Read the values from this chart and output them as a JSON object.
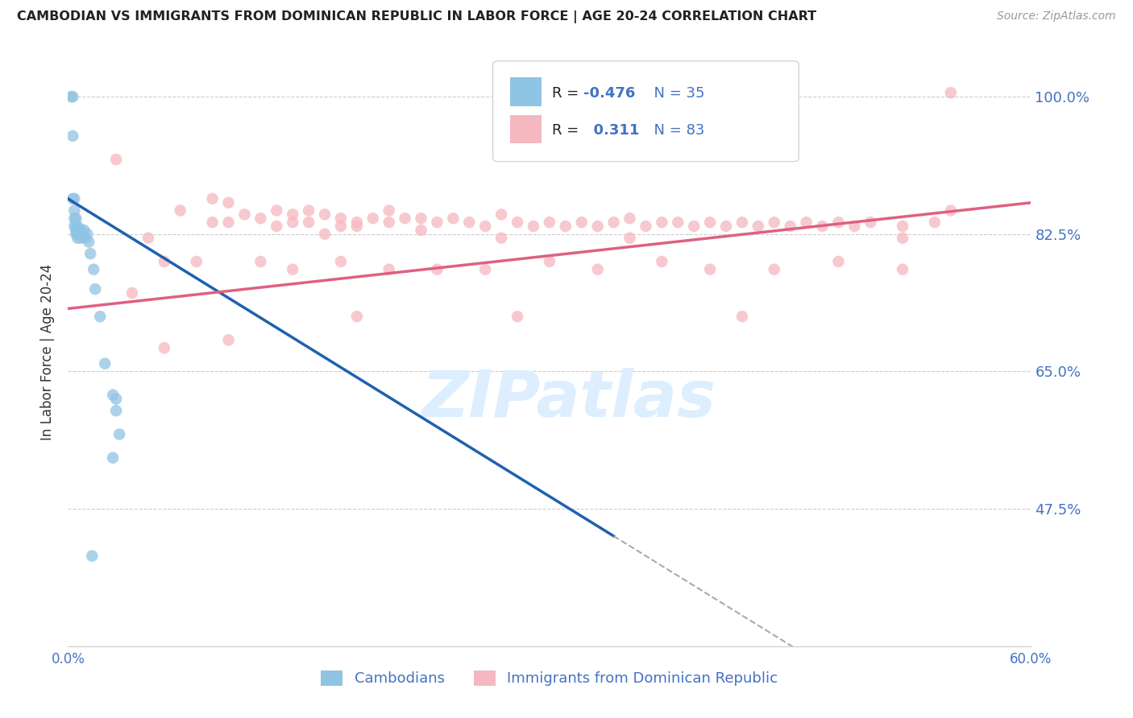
{
  "title": "CAMBODIAN VS IMMIGRANTS FROM DOMINICAN REPUBLIC IN LABOR FORCE | AGE 20-24 CORRELATION CHART",
  "source": "Source: ZipAtlas.com",
  "ylabel": "In Labor Force | Age 20-24",
  "x_min": 0.0,
  "x_max": 0.6,
  "y_min": 0.3,
  "y_max": 1.05,
  "yticks": [
    0.475,
    0.65,
    0.825,
    1.0
  ],
  "ytick_labels": [
    "47.5%",
    "65.0%",
    "82.5%",
    "100.0%"
  ],
  "color_blue": "#90c4e4",
  "color_pink": "#f5b8c0",
  "color_line_blue": "#2060b0",
  "color_line_pink": "#e06080",
  "color_axis_labels": "#4472c4",
  "blue_x": [
    0.002,
    0.003,
    0.003,
    0.003,
    0.004,
    0.004,
    0.004,
    0.004,
    0.005,
    0.005,
    0.005,
    0.005,
    0.006,
    0.006,
    0.006,
    0.007,
    0.007,
    0.008,
    0.008,
    0.009,
    0.01,
    0.011,
    0.012,
    0.013,
    0.014,
    0.016,
    0.017,
    0.02,
    0.023,
    0.028,
    0.03,
    0.03,
    0.032,
    0.028,
    0.015
  ],
  "blue_y": [
    1.0,
    1.0,
    0.95,
    0.87,
    0.87,
    0.855,
    0.845,
    0.835,
    0.845,
    0.835,
    0.83,
    0.825,
    0.835,
    0.825,
    0.82,
    0.83,
    0.825,
    0.83,
    0.82,
    0.825,
    0.83,
    0.82,
    0.825,
    0.815,
    0.8,
    0.78,
    0.755,
    0.72,
    0.66,
    0.62,
    0.615,
    0.6,
    0.57,
    0.54,
    0.415
  ],
  "pink_x": [
    0.55,
    0.03,
    0.05,
    0.07,
    0.09,
    0.09,
    0.1,
    0.1,
    0.11,
    0.12,
    0.13,
    0.13,
    0.14,
    0.14,
    0.15,
    0.15,
    0.16,
    0.16,
    0.17,
    0.17,
    0.18,
    0.18,
    0.19,
    0.2,
    0.2,
    0.21,
    0.22,
    0.22,
    0.23,
    0.24,
    0.25,
    0.26,
    0.27,
    0.27,
    0.28,
    0.29,
    0.3,
    0.31,
    0.32,
    0.33,
    0.34,
    0.35,
    0.35,
    0.36,
    0.37,
    0.38,
    0.39,
    0.4,
    0.41,
    0.42,
    0.43,
    0.44,
    0.45,
    0.46,
    0.47,
    0.48,
    0.49,
    0.5,
    0.52,
    0.54,
    0.55,
    0.06,
    0.08,
    0.12,
    0.14,
    0.17,
    0.2,
    0.23,
    0.26,
    0.3,
    0.33,
    0.37,
    0.4,
    0.44,
    0.48,
    0.52,
    0.42,
    0.28,
    0.18,
    0.1,
    0.06,
    0.04,
    0.52
  ],
  "pink_y": [
    1.005,
    0.92,
    0.82,
    0.855,
    0.87,
    0.84,
    0.865,
    0.84,
    0.85,
    0.845,
    0.855,
    0.835,
    0.85,
    0.84,
    0.855,
    0.84,
    0.85,
    0.825,
    0.845,
    0.835,
    0.84,
    0.835,
    0.845,
    0.855,
    0.84,
    0.845,
    0.845,
    0.83,
    0.84,
    0.845,
    0.84,
    0.835,
    0.85,
    0.82,
    0.84,
    0.835,
    0.84,
    0.835,
    0.84,
    0.835,
    0.84,
    0.845,
    0.82,
    0.835,
    0.84,
    0.84,
    0.835,
    0.84,
    0.835,
    0.84,
    0.835,
    0.84,
    0.835,
    0.84,
    0.835,
    0.84,
    0.835,
    0.84,
    0.835,
    0.84,
    0.855,
    0.79,
    0.79,
    0.79,
    0.78,
    0.79,
    0.78,
    0.78,
    0.78,
    0.79,
    0.78,
    0.79,
    0.78,
    0.78,
    0.79,
    0.78,
    0.72,
    0.72,
    0.72,
    0.69,
    0.68,
    0.75,
    0.82
  ],
  "blue_line_x0": 0.0,
  "blue_line_y0": 0.87,
  "blue_line_x1": 0.36,
  "blue_line_y1": 0.415,
  "blue_line_solid_end_x": 0.34,
  "pink_line_x0": 0.0,
  "pink_line_y0": 0.73,
  "pink_line_x1": 0.6,
  "pink_line_y1": 0.865
}
